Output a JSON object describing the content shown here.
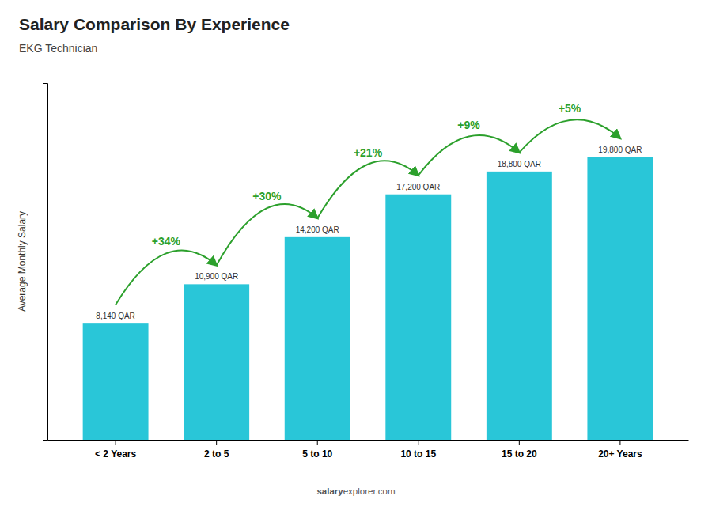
{
  "chart_data": {
    "type": "bar",
    "title": "Salary Comparison By Experience",
    "subtitle": "EKG Technician",
    "ylabel": "Average Monthly Salary",
    "categories": [
      "< 2 Years",
      "2 to 5",
      "5 to 10",
      "10 to 15",
      "15 to 20",
      "20+ Years"
    ],
    "values": [
      8140,
      10900,
      14200,
      17200,
      18800,
      19800
    ],
    "value_labels": [
      "8,140 QAR",
      "10,900 QAR",
      "14,200 QAR",
      "17,200 QAR",
      "18,800 QAR",
      "19,800 QAR"
    ],
    "data_labels": true,
    "color": "#29c6d8",
    "annotations": [
      "+34%",
      "+30%",
      "+21%",
      "+9%",
      "+5%"
    ],
    "source": [
      "salary",
      "explorer.com"
    ],
    "ylim": [
      0,
      25000
    ],
    "grid": false,
    "tick_labels": "x"
  }
}
